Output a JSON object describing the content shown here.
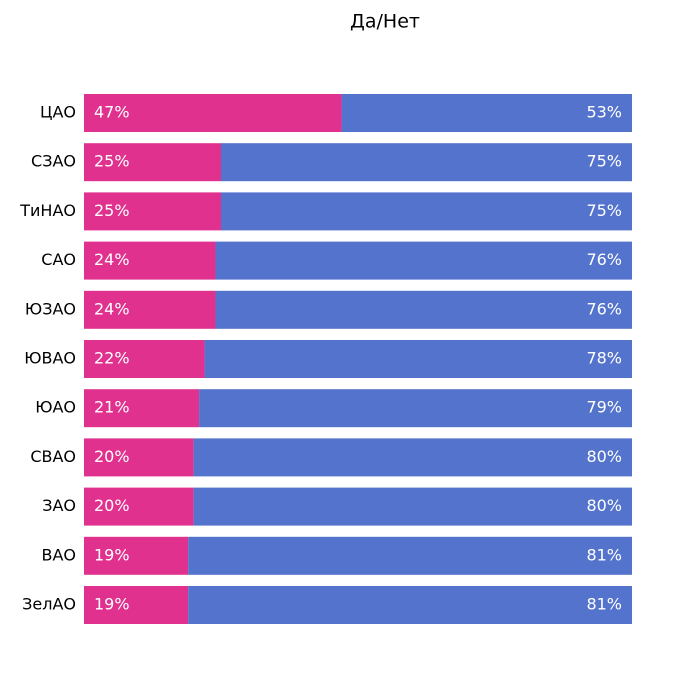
{
  "chart_data": {
    "type": "stacked-barh",
    "title": "Да/Нет",
    "categories": [
      "ЦАО",
      "СЗАО",
      "ТиНАО",
      "САО",
      "ЮЗАО",
      "ЮВАО",
      "ЮАО",
      "СВАО",
      "ЗАО",
      "ВАО",
      "ЗелАО"
    ],
    "series": [
      {
        "color": "#e0318e",
        "values": [
          47,
          25,
          25,
          24,
          24,
          22,
          21,
          20,
          20,
          19,
          19
        ],
        "value_labels": [
          "47%",
          "25%",
          "25%",
          "24%",
          "24%",
          "22%",
          "21%",
          "20%",
          "20%",
          "19%",
          "19%"
        ]
      },
      {
        "color": "#5473cc",
        "values": [
          53,
          75,
          75,
          76,
          76,
          78,
          79,
          80,
          80,
          81,
          81
        ],
        "value_labels": [
          "53%",
          "75%",
          "75%",
          "76%",
          "76%",
          "78%",
          "79%",
          "80%",
          "80%",
          "81%",
          "81%"
        ]
      }
    ],
    "xlim": [
      0,
      100
    ]
  }
}
